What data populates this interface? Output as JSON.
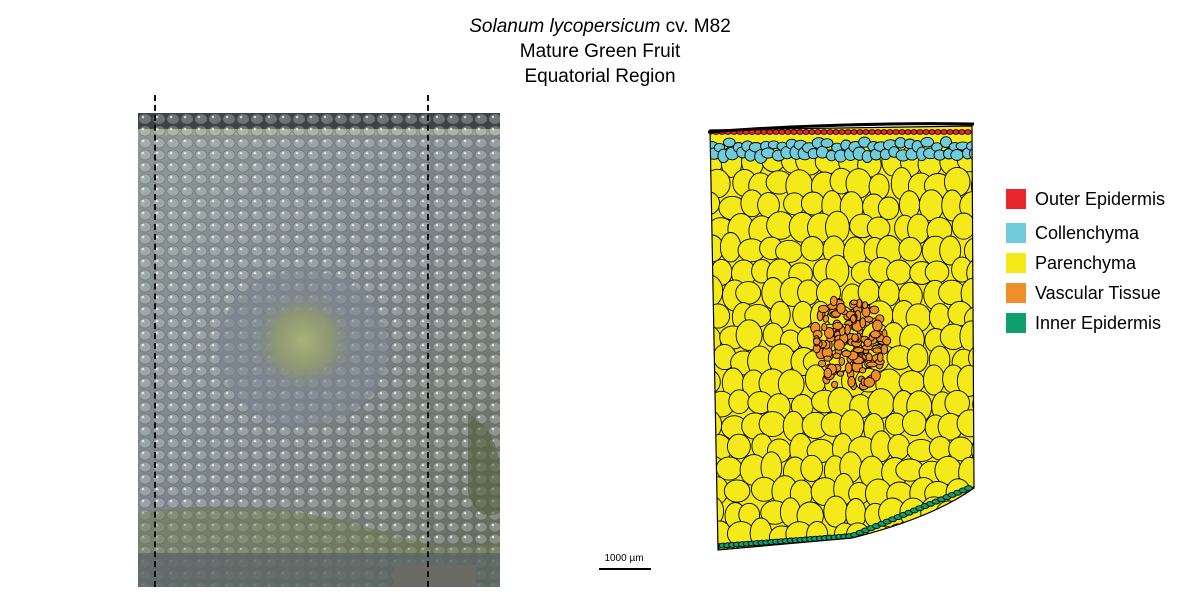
{
  "title": {
    "species": "Solanum lycopersicum",
    "cultivar": "cv. M82",
    "stage": "Mature Green Fruit",
    "region": "Equatorial Region"
  },
  "scale_bar": {
    "label": "1000 µm"
  },
  "legend": {
    "items": [
      {
        "label": "Outer Epidermis",
        "color": "#e8262b"
      },
      {
        "label": "Collenchyma",
        "color": "#6fcddb"
      },
      {
        "label": "Parenchyma",
        "color": "#f4ea1a"
      },
      {
        "label": "Vascular Tissue",
        "color": "#f08f2a"
      },
      {
        "label": "Inner Epidermis",
        "color": "#0f9f6e"
      }
    ]
  }
}
